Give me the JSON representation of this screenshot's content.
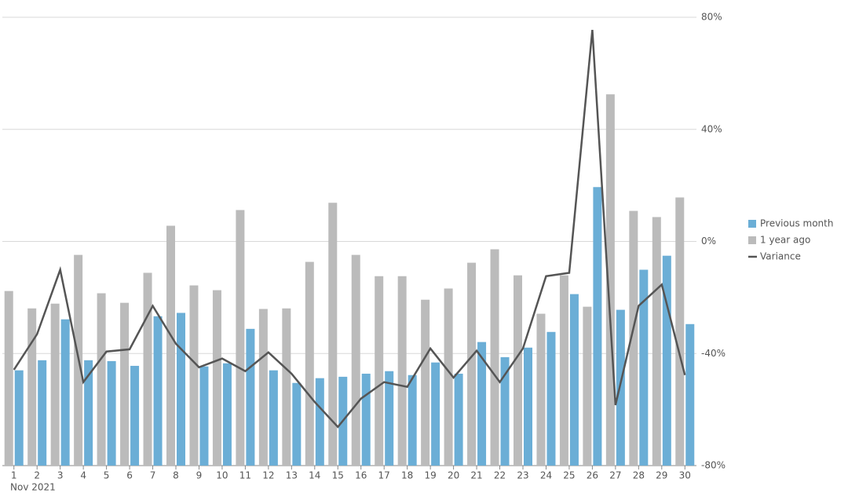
{
  "chart_data": {
    "type": "bar",
    "categories": [
      "1",
      "2",
      "3",
      "4",
      "5",
      "6",
      "7",
      "8",
      "9",
      "10",
      "11",
      "12",
      "13",
      "14",
      "15",
      "16",
      "17",
      "18",
      "19",
      "20",
      "21",
      "22",
      "23",
      "24",
      "25",
      "26",
      "27",
      "28",
      "29",
      "30"
    ],
    "x_label": "Nov 2021",
    "series": [
      {
        "name": "Previous month",
        "type": "bar",
        "color": "#6baed6",
        "values": [
          -46.0,
          -42.4,
          -27.8,
          -42.4,
          -42.7,
          -44.4,
          -26.7,
          -25.5,
          -44.6,
          -43.5,
          -31.2,
          -46.0,
          -50.5,
          -48.8,
          -48.3,
          -47.2,
          -46.3,
          -47.7,
          -43.2,
          -47.2,
          -35.9,
          -41.3,
          -37.9,
          -32.3,
          -18.8,
          19.4,
          -24.4,
          -10.1,
          -5.1,
          -29.5
        ]
      },
      {
        "name": "1 year ago",
        "type": "bar",
        "color": "#bbbbbb",
        "values": [
          -17.7,
          -23.9,
          -22.2,
          -4.8,
          -18.5,
          -21.9,
          -11.2,
          5.6,
          -15.7,
          -17.4,
          11.2,
          -24.1,
          -23.9,
          -7.3,
          13.8,
          -4.8,
          -12.4,
          -12.4,
          -20.8,
          -16.8,
          -7.6,
          -2.8,
          -12.1,
          -25.8,
          -12.1,
          -23.3,
          52.5,
          10.9,
          8.7,
          15.7
        ]
      },
      {
        "name": "Variance",
        "type": "line",
        "color": "#555555",
        "values": [
          -45.8,
          -33.1,
          -10.1,
          -50.2,
          -39.3,
          -38.5,
          -23.0,
          -36.5,
          -44.9,
          -41.8,
          -46.3,
          -39.6,
          -47.2,
          -57.3,
          -66.2,
          -56.1,
          -50.2,
          -51.9,
          -38.2,
          -48.6,
          -39.0,
          -50.2,
          -38.2,
          -12.4,
          -11.2,
          75.5,
          -58.4,
          -23.0,
          -15.4,
          -47.7
        ]
      }
    ],
    "ylim": [
      -80,
      80
    ],
    "yticks": [
      {
        "value": -80,
        "label": "-80%"
      },
      {
        "value": -40,
        "label": "-40%"
      },
      {
        "value": 0,
        "label": "0%"
      },
      {
        "value": 40,
        "label": "40%"
      },
      {
        "value": 80,
        "label": "80%"
      }
    ],
    "grid": true,
    "legend": "right"
  }
}
